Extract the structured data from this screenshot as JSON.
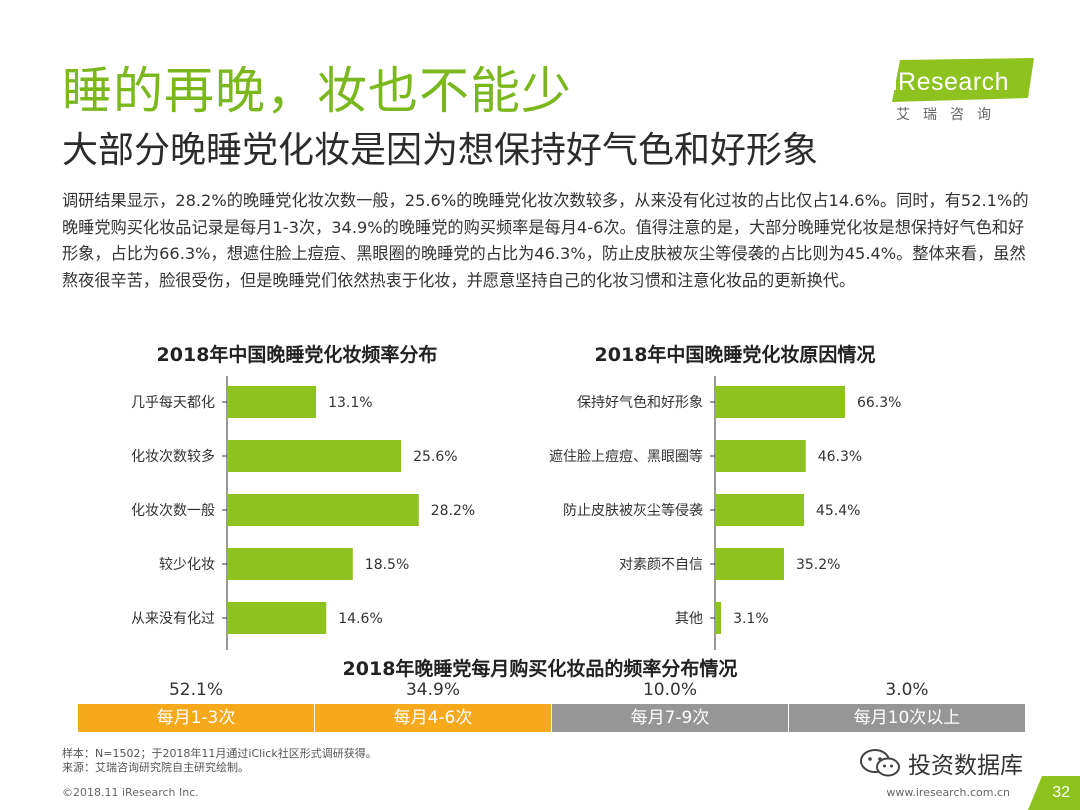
{
  "header": {
    "title": "睡的再晚，妆也不能少",
    "subtitle": "大部分晚睡党化妆是因为想保持好气色和好形象"
  },
  "logo": {
    "text": "iResearch",
    "cn": "艾瑞咨询"
  },
  "summary": "调研结果显示，28.2%的晚睡党化妆次数一般，25.6%的晚睡党化妆次数较多，从来没有化过妆的占比仅占14.6%。同时，有52.1%的晚睡党购买化妆品记录是每月1-3次，34.9%的晚睡党的购买频率是每月4-6次。值得注意的是，大部分晚睡党化妆是想保持好气色和好形象，占比为66.3%，想遮住脸上痘痘、黑眼圈的晚睡党的占比为46.3%，防止皮肤被灰尘等侵袭的占比则为45.4%。整体来看，虽然熬夜很辛苦，脸很受伤，但是晚睡党们依然热衷于化妆，并愿意坚持自己的化妆习惯和注意化妆品的更新换代。",
  "chart_data": [
    {
      "type": "bar",
      "orientation": "horizontal",
      "title": "2018年中国晚睡党化妆频率分布",
      "categories": [
        "几乎每天都化",
        "化妆次数较多",
        "化妆次数一般",
        "较少化妆",
        "从来没有化过"
      ],
      "values": [
        13.1,
        25.6,
        28.2,
        18.5,
        14.6
      ],
      "labels": [
        "13.1%",
        "25.6%",
        "28.2%",
        "18.5%",
        "14.6%"
      ],
      "unit": "%",
      "xlim": [
        0,
        100
      ],
      "color": "#8dc21f",
      "grid": false
    },
    {
      "type": "bar",
      "orientation": "horizontal",
      "title": "2018年中国晚睡党化妆原因情况",
      "categories": [
        "保持好气色和好形象",
        "遮住脸上痘痘、黑眼圈等",
        "防止皮肤被灰尘等侵袭",
        "对素颜不自信",
        "其他"
      ],
      "values": [
        66.3,
        46.3,
        45.4,
        35.2,
        3.1
      ],
      "labels": [
        "66.3%",
        "46.3%",
        "45.4%",
        "35.2%",
        "3.1%"
      ],
      "unit": "%",
      "xlim": [
        0,
        100
      ],
      "color": "#8dc21f",
      "grid": false
    },
    {
      "type": "bar",
      "orientation": "segmented",
      "title": "2018年晚睡党每月购买化妆品的频率分布情况",
      "categories": [
        "每月1-3次",
        "每月4-6次",
        "每月7-9次",
        "每月10次以上"
      ],
      "values": [
        52.1,
        34.9,
        10.0,
        3.0
      ],
      "labels": [
        "52.1%",
        "34.9%",
        "10.0%",
        "3.0%"
      ],
      "colors": [
        "#f5a91b",
        "#f5a91b",
        "#969696",
        "#969696"
      ],
      "unit": "%"
    }
  ],
  "notes": {
    "sample": "样本：N=1502；于2018年11月通过iClick社区形式调研获得。",
    "source": "来源：艾瑞咨询研究院自主研究绘制。"
  },
  "footer": {
    "copyright": "©2018.11 iResearch Inc.",
    "website": "www.iresearch.com.cn",
    "page": "32"
  },
  "watermark": {
    "text": "投资数据库"
  },
  "colors": {
    "accent_green": "#7ab81e",
    "bar_green": "#8dc21f",
    "orange": "#f5a91b",
    "gray": "#969696"
  }
}
